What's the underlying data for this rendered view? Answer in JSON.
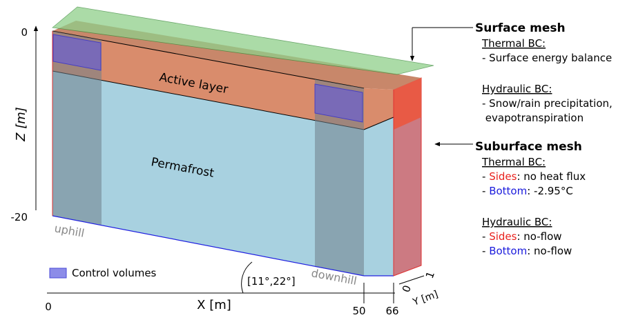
{
  "diagram": {
    "z_axis": {
      "label": "Z [m]",
      "top": "0",
      "bottom": "-20"
    },
    "x_axis": {
      "label": "X [m]",
      "ticks": [
        "0",
        "50",
        "66"
      ]
    },
    "y_axis": {
      "label": "Y [m]",
      "ticks": [
        "0",
        "1"
      ]
    },
    "regions": {
      "active_layer": "Active layer",
      "permafrost": "Permafrost"
    },
    "slope": {
      "uphill": "uphill",
      "downhill": "downhill",
      "angle": "[11°,22°]"
    },
    "legend": "Control volumes"
  },
  "panels": [
    {
      "title": "Surface mesh",
      "sections": [
        {
          "heading": "Thermal BC:",
          "lines": [
            [
              {
                "text": "- Surface energy balance"
              }
            ]
          ]
        },
        {
          "heading": "Hydraulic BC:",
          "lines": [
            [
              {
                "text": "- Snow/rain precipitation,"
              }
            ],
            [
              {
                "text": " evapotranspiration"
              }
            ]
          ]
        }
      ]
    },
    {
      "title": "Suburface mesh",
      "sections": [
        {
          "heading": "Thermal BC:",
          "lines": [
            [
              {
                "text": "- "
              },
              {
                "text": "Sides",
                "color": "#e8201c"
              },
              {
                "text": ": no heat flux"
              }
            ],
            [
              {
                "text": "- "
              },
              {
                "text": "Bottom",
                "color": "#1a1adc"
              },
              {
                "text": ": -2.95°C"
              }
            ]
          ]
        },
        {
          "heading": "Hydraulic BC:",
          "lines": [
            [
              {
                "text": "- "
              },
              {
                "text": "Sides",
                "color": "#e8201c"
              },
              {
                "text": ": no-flow"
              }
            ],
            [
              {
                "text": "- "
              },
              {
                "text": "Bottom",
                "color": "#1a1adc"
              },
              {
                "text": ": no-flow"
              }
            ]
          ]
        }
      ]
    }
  ]
}
